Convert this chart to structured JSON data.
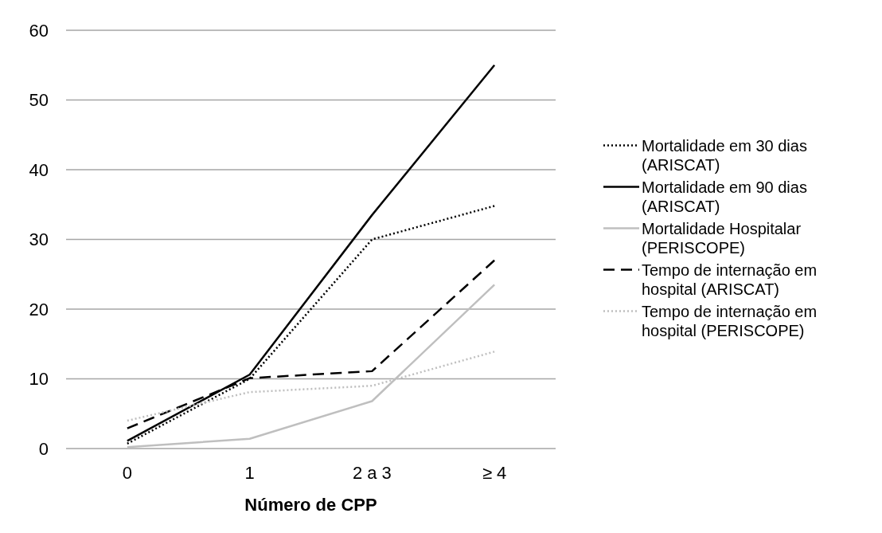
{
  "chart_data": {
    "type": "line",
    "xlabel": "Número de CPP",
    "categories": [
      "0",
      "1",
      "2 a 3",
      "≥ 4"
    ],
    "ylim": [
      0,
      60
    ],
    "yticks": [
      0,
      10,
      20,
      30,
      40,
      50,
      60
    ],
    "grid": "y",
    "legend": "right",
    "series": [
      {
        "name": "Mortalidade em 30 dias (ARISCAT)",
        "color": "#000000",
        "line_style": "dotted",
        "values": [
          0.7,
          10,
          30,
          34.8
        ]
      },
      {
        "name": "Mortalidade em 90 dias (ARISCAT)",
        "color": "#000000",
        "line_style": "solid",
        "values": [
          1.1,
          10.6,
          33.5,
          55
        ]
      },
      {
        "name": "Mortalidade Hospitalar (PERISCOPE)",
        "color": "#bfbfbf",
        "line_style": "solid",
        "values": [
          0.2,
          1.4,
          6.8,
          23.5
        ]
      },
      {
        "name": "Tempo de internação em hospital (ARISCAT)",
        "color": "#000000",
        "line_style": "dashed",
        "values": [
          2.9,
          10.1,
          11.1,
          27
        ]
      },
      {
        "name": "Tempo de internação em hospital (PERISCOPE)",
        "color": "#bfbfbf",
        "line_style": "dotted",
        "values": [
          4,
          8.1,
          9,
          13.9
        ]
      }
    ]
  }
}
